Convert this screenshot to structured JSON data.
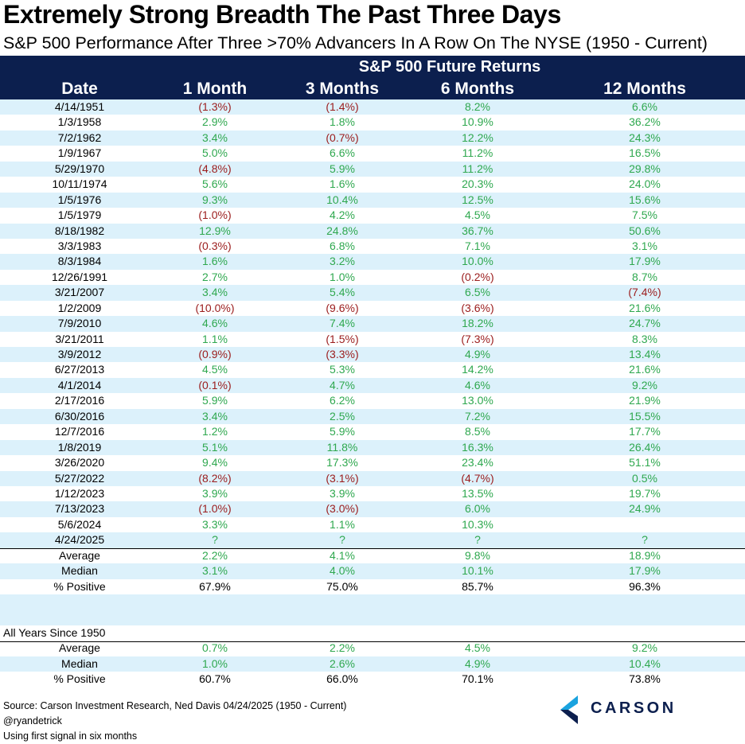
{
  "title": "Extremely Strong Breadth The Past Three Days",
  "subtitle": "S&P 500 Performance After Three >70% Advancers In A Row On The NYSE (1950 - Current)",
  "header": {
    "super": "S&P 500 Future Returns",
    "columns": [
      "Date",
      "1 Month",
      "3 Months",
      "6 Months",
      "12 Months"
    ]
  },
  "colors": {
    "header_bg": "#0c1f4e",
    "row_shade": "#dcf1fb",
    "positive": "#2fa84f",
    "negative": "#9b1c1c"
  },
  "chart_data": {
    "type": "table",
    "title": "Extremely Strong Breadth The Past Three Days",
    "columns": [
      "Date",
      "1 Month",
      "3 Months",
      "6 Months",
      "12 Months"
    ],
    "rows": [
      [
        "4/14/1951",
        "(1.3%)",
        "(1.4%)",
        "8.2%",
        "6.6%"
      ],
      [
        "1/3/1958",
        "2.9%",
        "1.8%",
        "10.9%",
        "36.2%"
      ],
      [
        "7/2/1962",
        "3.4%",
        "(0.7%)",
        "12.2%",
        "24.3%"
      ],
      [
        "1/9/1967",
        "5.0%",
        "6.6%",
        "11.2%",
        "16.5%"
      ],
      [
        "5/29/1970",
        "(4.8%)",
        "5.9%",
        "11.2%",
        "29.8%"
      ],
      [
        "10/11/1974",
        "5.6%",
        "1.6%",
        "20.3%",
        "24.0%"
      ],
      [
        "1/5/1976",
        "9.3%",
        "10.4%",
        "12.5%",
        "15.6%"
      ],
      [
        "1/5/1979",
        "(1.0%)",
        "4.2%",
        "4.5%",
        "7.5%"
      ],
      [
        "8/18/1982",
        "12.9%",
        "24.8%",
        "36.7%",
        "50.6%"
      ],
      [
        "3/3/1983",
        "(0.3%)",
        "6.8%",
        "7.1%",
        "3.1%"
      ],
      [
        "8/3/1984",
        "1.6%",
        "3.2%",
        "10.0%",
        "17.9%"
      ],
      [
        "12/26/1991",
        "2.7%",
        "1.0%",
        "(0.2%)",
        "8.7%"
      ],
      [
        "3/21/2007",
        "3.4%",
        "5.4%",
        "6.5%",
        "(7.4%)"
      ],
      [
        "1/2/2009",
        "(10.0%)",
        "(9.6%)",
        "(3.6%)",
        "21.6%"
      ],
      [
        "7/9/2010",
        "4.6%",
        "7.4%",
        "18.2%",
        "24.7%"
      ],
      [
        "3/21/2011",
        "1.1%",
        "(1.5%)",
        "(7.3%)",
        "8.3%"
      ],
      [
        "3/9/2012",
        "(0.9%)",
        "(3.3%)",
        "4.9%",
        "13.4%"
      ],
      [
        "6/27/2013",
        "4.5%",
        "5.3%",
        "14.2%",
        "21.6%"
      ],
      [
        "4/1/2014",
        "(0.1%)",
        "4.7%",
        "4.6%",
        "9.2%"
      ],
      [
        "2/17/2016",
        "5.9%",
        "6.2%",
        "13.0%",
        "21.9%"
      ],
      [
        "6/30/2016",
        "3.4%",
        "2.5%",
        "7.2%",
        "15.5%"
      ],
      [
        "12/7/2016",
        "1.2%",
        "5.9%",
        "8.5%",
        "17.7%"
      ],
      [
        "1/8/2019",
        "5.1%",
        "11.8%",
        "16.3%",
        "26.4%"
      ],
      [
        "3/26/2020",
        "9.4%",
        "17.3%",
        "23.4%",
        "51.1%"
      ],
      [
        "5/27/2022",
        "(8.2%)",
        "(3.1%)",
        "(4.7%)",
        "0.5%"
      ],
      [
        "1/12/2023",
        "3.9%",
        "3.9%",
        "13.5%",
        "19.7%"
      ],
      [
        "7/13/2023",
        "(1.0%)",
        "(3.0%)",
        "6.0%",
        "24.9%"
      ],
      [
        "5/6/2024",
        "3.3%",
        "1.1%",
        "10.3%",
        ""
      ],
      [
        "4/24/2025",
        "?",
        "?",
        "?",
        "?"
      ]
    ],
    "summary": [
      [
        "Average",
        "2.2%",
        "4.1%",
        "9.8%",
        "18.9%"
      ],
      [
        "Median",
        "3.1%",
        "4.0%",
        "10.1%",
        "17.9%"
      ],
      [
        "% Positive",
        "67.9%",
        "75.0%",
        "85.7%",
        "96.3%"
      ]
    ],
    "all_years_label": "All Years Since 1950",
    "all_years": [
      [
        "Average",
        "0.7%",
        "2.2%",
        "4.5%",
        "9.2%"
      ],
      [
        "Median",
        "1.0%",
        "2.6%",
        "4.9%",
        "10.4%"
      ],
      [
        "% Positive",
        "60.7%",
        "66.0%",
        "70.1%",
        "73.8%"
      ]
    ]
  },
  "footer": {
    "source": "Source: Carson Investment Research, Ned Davis 04/24/2025 (1950 - Current)",
    "handle": "@ryandetrick",
    "note": "Using first signal in six months"
  },
  "logo": {
    "text": "CARSON",
    "icon": "carson-chevron-icon"
  }
}
